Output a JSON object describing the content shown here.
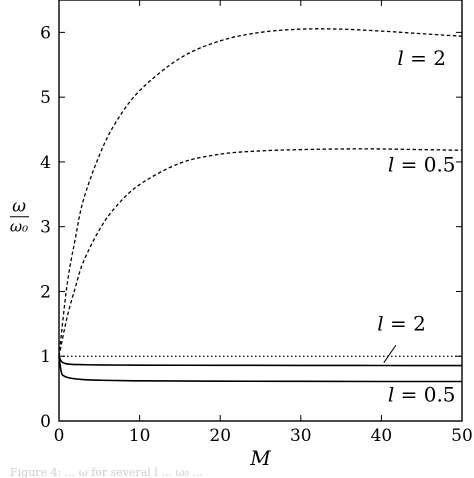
{
  "chart_data": {
    "type": "line",
    "xlabel": "M",
    "ylabel_num": "ω",
    "ylabel_den": "ω₀",
    "xlim": [
      0,
      50
    ],
    "ylim": [
      0,
      6.5
    ],
    "xticks": [
      0,
      10,
      20,
      30,
      40,
      50
    ],
    "yticks": [
      0,
      1,
      2,
      3,
      4,
      5,
      6
    ],
    "grid": false,
    "series": [
      {
        "style": "dashed",
        "x": [
          0,
          1,
          2,
          3,
          5,
          7,
          10,
          15,
          20,
          25,
          30,
          35,
          40,
          45,
          50
        ],
        "y": [
          1.0,
          2.1,
          2.8,
          3.4,
          4.1,
          4.6,
          5.1,
          5.6,
          5.87,
          6.0,
          6.05,
          6.05,
          6.02,
          5.98,
          5.94
        ]
      },
      {
        "style": "dashed",
        "x": [
          0,
          1,
          2,
          3,
          5,
          7,
          10,
          15,
          20,
          25,
          30,
          35,
          40,
          45,
          50
        ],
        "y": [
          1.0,
          1.6,
          2.05,
          2.45,
          2.95,
          3.3,
          3.65,
          3.98,
          4.12,
          4.17,
          4.19,
          4.2,
          4.2,
          4.19,
          4.18
        ]
      },
      {
        "style": "dotted",
        "x": [
          0,
          50
        ],
        "y": [
          1.0,
          1.0
        ]
      },
      {
        "style": "solid",
        "x": [
          0,
          0.3,
          0.7,
          1.5,
          3,
          5,
          10,
          20,
          30,
          40,
          50
        ],
        "y": [
          1.0,
          0.92,
          0.89,
          0.875,
          0.87,
          0.865,
          0.862,
          0.86,
          0.858,
          0.857,
          0.856
        ]
      },
      {
        "style": "solid",
        "x": [
          0,
          0.3,
          0.7,
          1.5,
          3,
          5,
          10,
          20,
          30,
          40,
          50
        ],
        "y": [
          1.0,
          0.75,
          0.69,
          0.66,
          0.64,
          0.63,
          0.62,
          0.615,
          0.612,
          0.61,
          0.61
        ]
      }
    ],
    "annotations": [
      {
        "var": "l",
        "rest": " = 2",
        "x": 45,
        "y": 5.5
      },
      {
        "var": "l",
        "rest": " = 0.5",
        "x": 45,
        "y": 3.85
      },
      {
        "var": "l",
        "rest": " = 2",
        "x": 42.5,
        "y": 1.4
      },
      {
        "var": "l",
        "rest": " = 0.5",
        "x": 45,
        "y": 0.3
      }
    ],
    "leader": {
      "x1": 41.8,
      "y1": 1.17,
      "x2": 40.3,
      "y2": 0.9
    }
  },
  "caption": "Figure 4: ... ω for several l ... ω₀ ..."
}
